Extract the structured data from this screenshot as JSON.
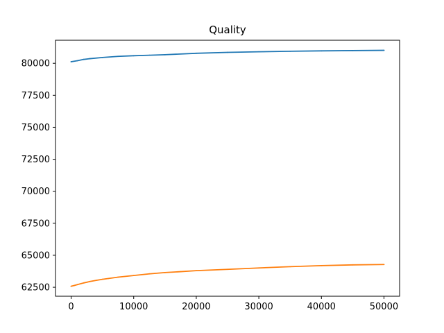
{
  "chart_data": {
    "type": "line",
    "title": "Quality",
    "xlabel": "",
    "ylabel": "",
    "xlim": [
      -2500,
      52500
    ],
    "ylim": [
      61800,
      81800
    ],
    "grid": false,
    "x_ticks": [
      0,
      10000,
      20000,
      30000,
      40000,
      50000
    ],
    "x_tick_labels": [
      "0",
      "10000",
      "20000",
      "30000",
      "40000",
      "50000"
    ],
    "y_ticks": [
      62500,
      65000,
      67500,
      70000,
      72500,
      75000,
      77500,
      80000
    ],
    "y_tick_labels": [
      "62500",
      "65000",
      "67500",
      "70000",
      "72500",
      "75000",
      "77500",
      "80000"
    ],
    "series": [
      {
        "color": "#1f77b4",
        "x": [
          0,
          1000,
          2000,
          3000,
          5000,
          7500,
          10000,
          12500,
          15000,
          20000,
          25000,
          30000,
          35000,
          40000,
          45000,
          50000
        ],
        "y": [
          80120,
          80200,
          80300,
          80360,
          80450,
          80540,
          80590,
          80630,
          80670,
          80780,
          80850,
          80900,
          80940,
          80970,
          80990,
          81010
        ]
      },
      {
        "color": "#ff7f0e",
        "x": [
          0,
          500,
          1000,
          2000,
          3000,
          4000,
          5000,
          6000,
          7500,
          10000,
          12500,
          15000,
          17500,
          20000,
          25000,
          30000,
          35000,
          40000,
          45000,
          50000
        ],
        "y": [
          62580,
          62640,
          62710,
          62840,
          62950,
          63040,
          63120,
          63190,
          63290,
          63420,
          63550,
          63650,
          63720,
          63800,
          63900,
          64010,
          64110,
          64190,
          64250,
          64280
        ]
      }
    ]
  }
}
